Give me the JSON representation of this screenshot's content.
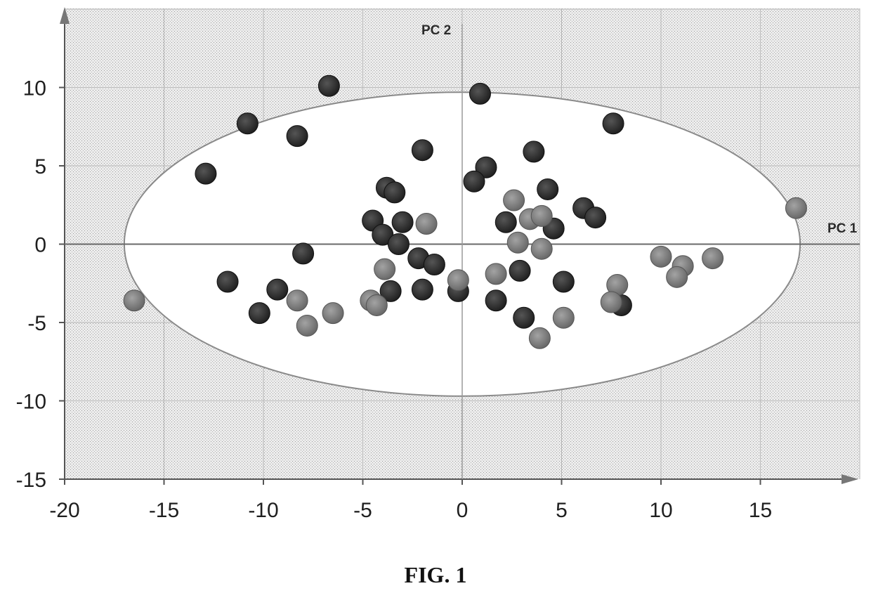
{
  "figure_caption": "FIG. 1",
  "chart_data": {
    "type": "scatter",
    "title": "",
    "xlabel": "PC 1",
    "ylabel": "PC 2",
    "xlim": [
      -20,
      20
    ],
    "ylim": [
      -15,
      15
    ],
    "xticks": [
      -20,
      -15,
      -10,
      -5,
      0,
      5,
      10,
      15
    ],
    "yticks": [
      -15,
      -10,
      -5,
      0,
      5,
      10
    ],
    "grid": true,
    "confidence_ellipse": {
      "cx": 0,
      "cy": 0,
      "rx": 17,
      "ry": 9.7
    },
    "series": [
      {
        "group": "dark",
        "color": "#333333",
        "points": [
          [
            -6.7,
            10.1
          ],
          [
            0.9,
            9.6
          ],
          [
            -10.8,
            7.7
          ],
          [
            -8.3,
            6.9
          ],
          [
            7.6,
            7.7
          ],
          [
            -12.9,
            4.5
          ],
          [
            -2.0,
            6.0
          ],
          [
            3.6,
            5.9
          ],
          [
            1.2,
            4.9
          ],
          [
            0.6,
            4.0
          ],
          [
            -3.8,
            3.6
          ],
          [
            -3.4,
            3.3
          ],
          [
            4.3,
            3.5
          ],
          [
            6.1,
            2.3
          ],
          [
            6.7,
            1.7
          ],
          [
            -4.5,
            1.5
          ],
          [
            -3.0,
            1.4
          ],
          [
            2.2,
            1.4
          ],
          [
            4.6,
            1.0
          ],
          [
            -4.0,
            0.6
          ],
          [
            -3.2,
            0.0
          ],
          [
            -8.0,
            -0.6
          ],
          [
            -2.2,
            -0.9
          ],
          [
            -1.4,
            -1.3
          ],
          [
            2.9,
            -1.7
          ],
          [
            -11.8,
            -2.4
          ],
          [
            -9.3,
            -2.9
          ],
          [
            -3.6,
            -3.0
          ],
          [
            -2.0,
            -2.9
          ],
          [
            -0.2,
            -3.0
          ],
          [
            5.1,
            -2.4
          ],
          [
            1.7,
            -3.6
          ],
          [
            -10.2,
            -4.4
          ],
          [
            3.1,
            -4.7
          ],
          [
            8.0,
            -3.9
          ]
        ]
      },
      {
        "group": "gray",
        "color": "#7c7c7c",
        "points": [
          [
            16.8,
            2.3
          ],
          [
            2.6,
            2.8
          ],
          [
            3.4,
            1.6
          ],
          [
            4.0,
            1.8
          ],
          [
            -1.8,
            1.3
          ],
          [
            2.8,
            0.1
          ],
          [
            4.0,
            -0.3
          ],
          [
            10.0,
            -0.8
          ],
          [
            12.6,
            -0.9
          ],
          [
            11.1,
            -1.4
          ],
          [
            10.8,
            -2.1
          ],
          [
            -3.9,
            -1.6
          ],
          [
            1.7,
            -1.9
          ],
          [
            -0.2,
            -2.3
          ],
          [
            7.8,
            -2.6
          ],
          [
            -16.5,
            -3.6
          ],
          [
            -8.3,
            -3.6
          ],
          [
            -4.6,
            -3.6
          ],
          [
            -4.3,
            -3.9
          ],
          [
            7.5,
            -3.7
          ],
          [
            -6.5,
            -4.4
          ],
          [
            -7.8,
            -5.2
          ],
          [
            5.1,
            -4.7
          ],
          [
            3.9,
            -6.0
          ]
        ]
      }
    ]
  }
}
